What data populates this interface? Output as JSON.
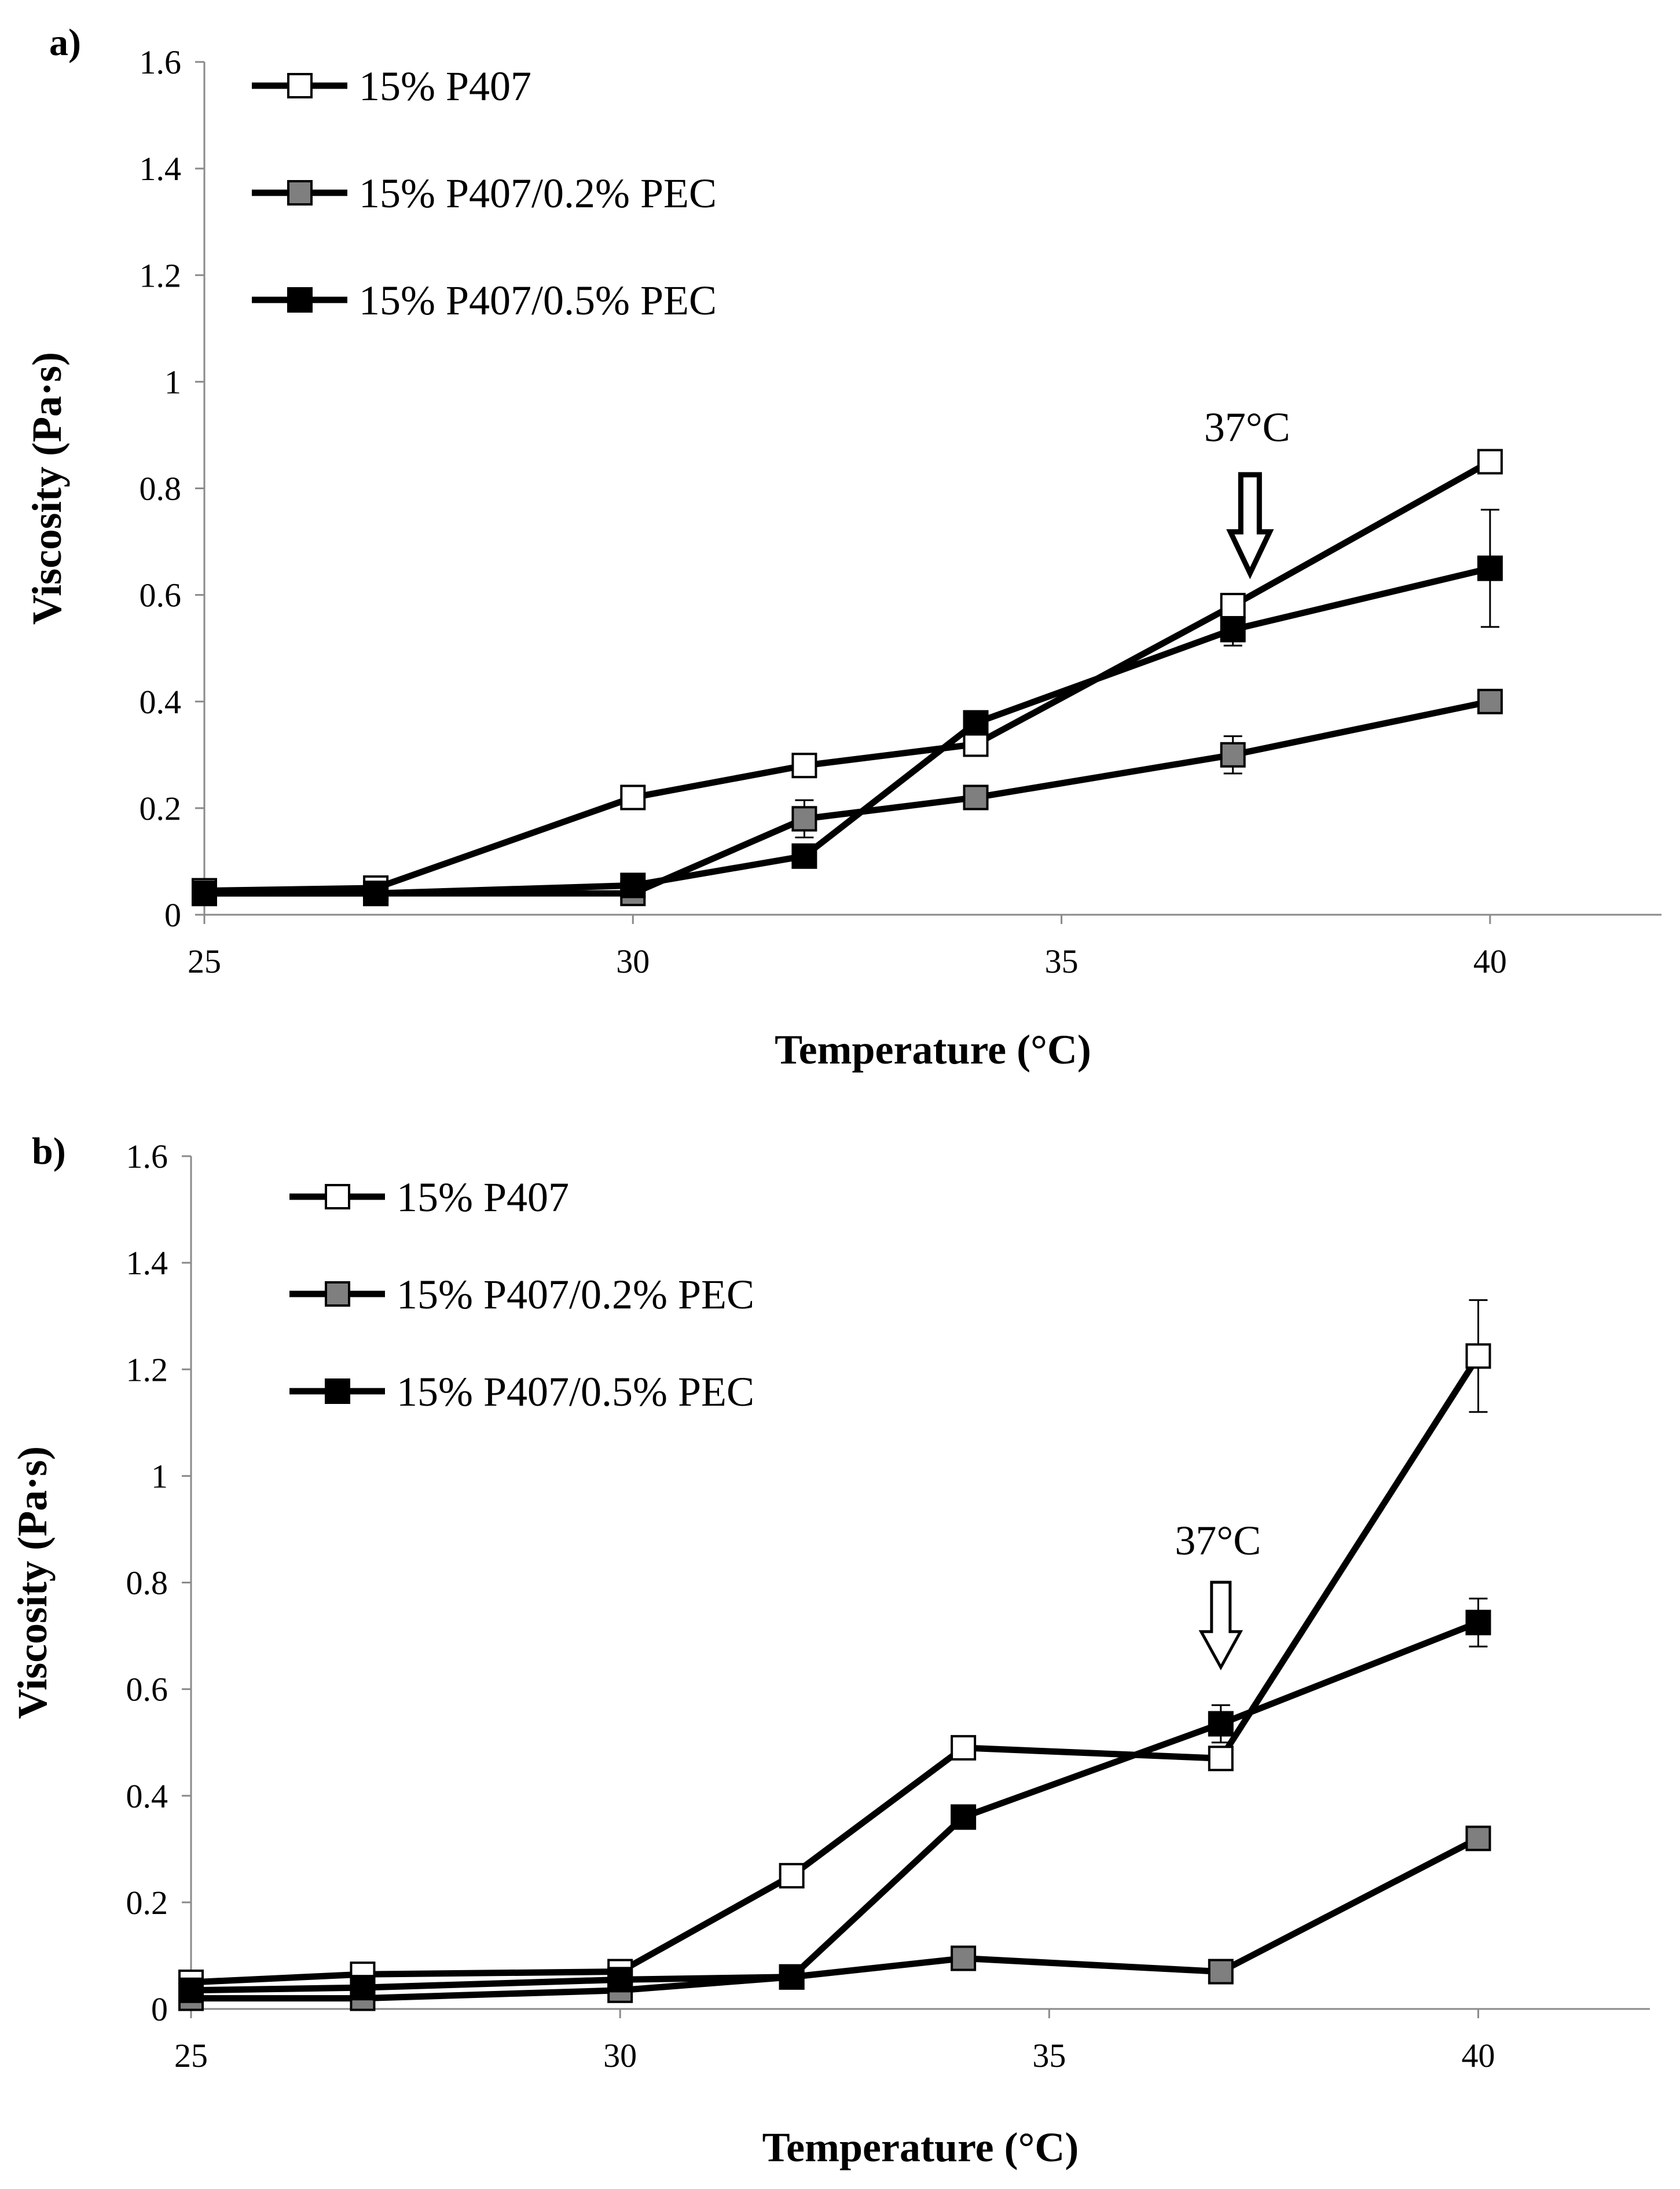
{
  "chart_data": [
    {
      "type": "line",
      "panel": "a)",
      "xlabel": "Temperature (°C)",
      "ylabel": "Viscosity (Pa·s)",
      "xlim": [
        25,
        42
      ],
      "ylim": [
        0,
        1.6
      ],
      "xticks": [
        "25",
        "30",
        "35",
        "40"
      ],
      "yticks": [
        "0",
        "0.2",
        "0.4",
        "0.6",
        "0.8",
        "1",
        "1.2",
        "1.4",
        "1.6"
      ],
      "annotation": "37°C",
      "annotation_x": 37.2,
      "legend_position": "top-left",
      "series": [
        {
          "name": "15% P407",
          "marker": "open-square",
          "fill": "#ffffff",
          "x": [
            25,
            27,
            30,
            32,
            34,
            37,
            40
          ],
          "y": [
            0.045,
            0.05,
            0.22,
            0.28,
            0.32,
            0.58,
            0.85
          ],
          "err": [
            0,
            0,
            0,
            0,
            0,
            0,
            0
          ]
        },
        {
          "name": "15% P407/0.2% PEC",
          "marker": "gray-square",
          "fill": "#7f7f7f",
          "x": [
            25,
            27,
            30,
            32,
            34,
            37,
            40
          ],
          "y": [
            0.04,
            0.04,
            0.04,
            0.18,
            0.22,
            0.3,
            0.4
          ],
          "err": [
            0,
            0,
            0,
            0.035,
            0,
            0.035,
            0
          ]
        },
        {
          "name": "15% P407/0.5% PEC",
          "marker": "filled-square",
          "fill": "#000000",
          "x": [
            25,
            27,
            30,
            32,
            34,
            37,
            40
          ],
          "y": [
            0.04,
            0.04,
            0.055,
            0.11,
            0.36,
            0.535,
            0.65
          ],
          "err": [
            0,
            0,
            0,
            0,
            0,
            0.03,
            0.11
          ]
        }
      ]
    },
    {
      "type": "line",
      "panel": "b)",
      "xlabel": "Temperature (°C)",
      "ylabel": "Viscosity (Pa·s)",
      "xlim": [
        25,
        42
      ],
      "ylim": [
        0,
        1.6
      ],
      "xticks": [
        "25",
        "30",
        "35",
        "40"
      ],
      "yticks": [
        "0",
        "0.2",
        "0.4",
        "0.6",
        "0.8",
        "1",
        "1.2",
        "1.4",
        "1.6"
      ],
      "annotation": "37°C",
      "annotation_x": 37,
      "legend_position": "top-left",
      "series": [
        {
          "name": "15% P407",
          "marker": "open-square",
          "fill": "#ffffff",
          "x": [
            25,
            27,
            30,
            32,
            34,
            37,
            40
          ],
          "y": [
            0.05,
            0.065,
            0.07,
            0.25,
            0.49,
            0.47,
            1.225
          ],
          "err": [
            0,
            0,
            0,
            0,
            0,
            0,
            0.105
          ]
        },
        {
          "name": "15% P407/0.2% PEC",
          "marker": "gray-square",
          "fill": "#7f7f7f",
          "x": [
            25,
            27,
            30,
            32,
            34,
            37,
            40
          ],
          "y": [
            0.02,
            0.02,
            0.035,
            0.06,
            0.095,
            0.07,
            0.32
          ],
          "err": [
            0,
            0,
            0,
            0,
            0,
            0,
            0
          ]
        },
        {
          "name": "15% P407/0.5% PEC",
          "marker": "filled-square",
          "fill": "#000000",
          "x": [
            25,
            27,
            30,
            32,
            34,
            37,
            40
          ],
          "y": [
            0.035,
            0.04,
            0.055,
            0.06,
            0.36,
            0.535,
            0.725
          ],
          "err": [
            0,
            0,
            0,
            0,
            0,
            0.035,
            0.045
          ]
        }
      ]
    }
  ]
}
